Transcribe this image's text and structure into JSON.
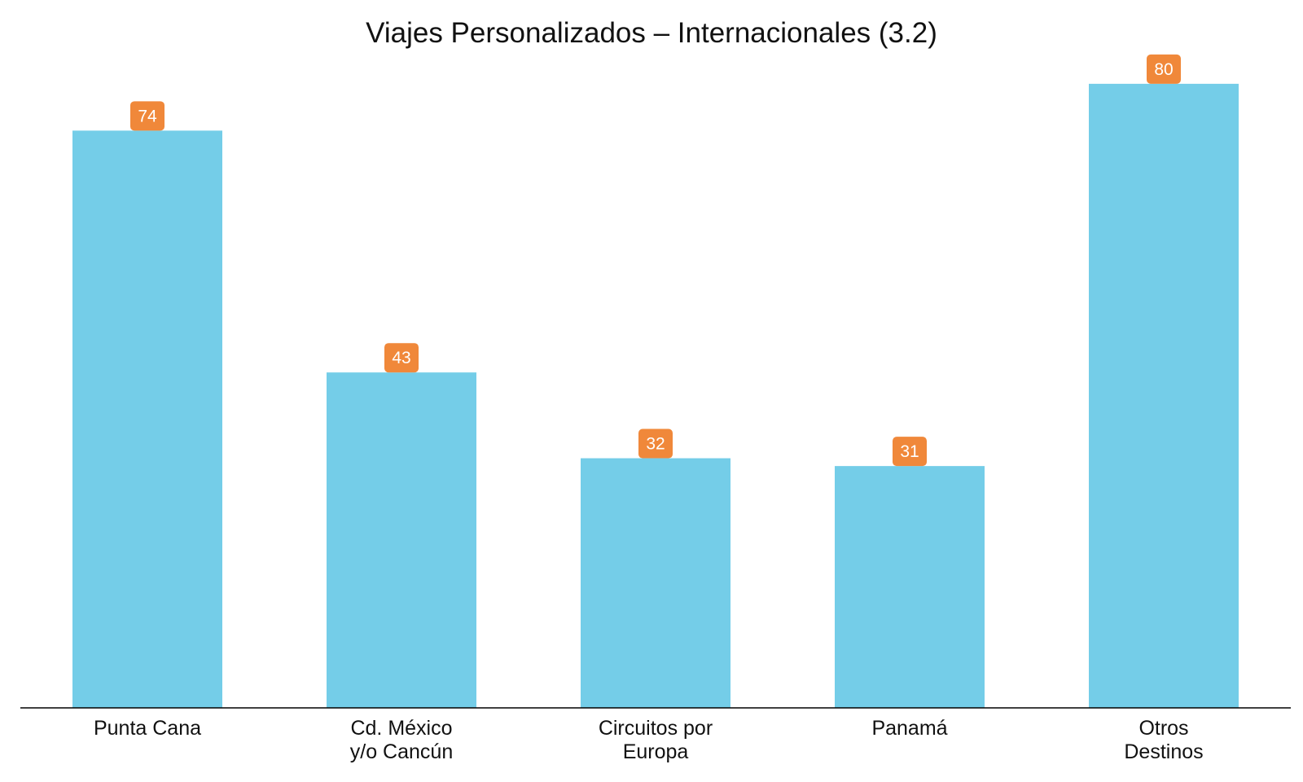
{
  "chart_data": {
    "type": "bar",
    "title": "Viajes Personalizados – Internacionales (3.2)",
    "xlabel": "",
    "ylabel": "",
    "categories": [
      [
        "Punta Cana"
      ],
      [
        "Cd. México",
        "y/o Cancún"
      ],
      [
        "Circuitos por",
        "Europa"
      ],
      [
        "Panamá"
      ],
      [
        "Otros",
        "Destinos"
      ]
    ],
    "values": [
      74,
      43,
      32,
      31,
      80
    ],
    "ylim": [
      0,
      85
    ],
    "grid": false,
    "legend": "none",
    "colors": {
      "bar": "#74CDE8",
      "label_bg": "#F0883A",
      "label_text": "#FFFFFF",
      "axis": "#000000"
    }
  }
}
